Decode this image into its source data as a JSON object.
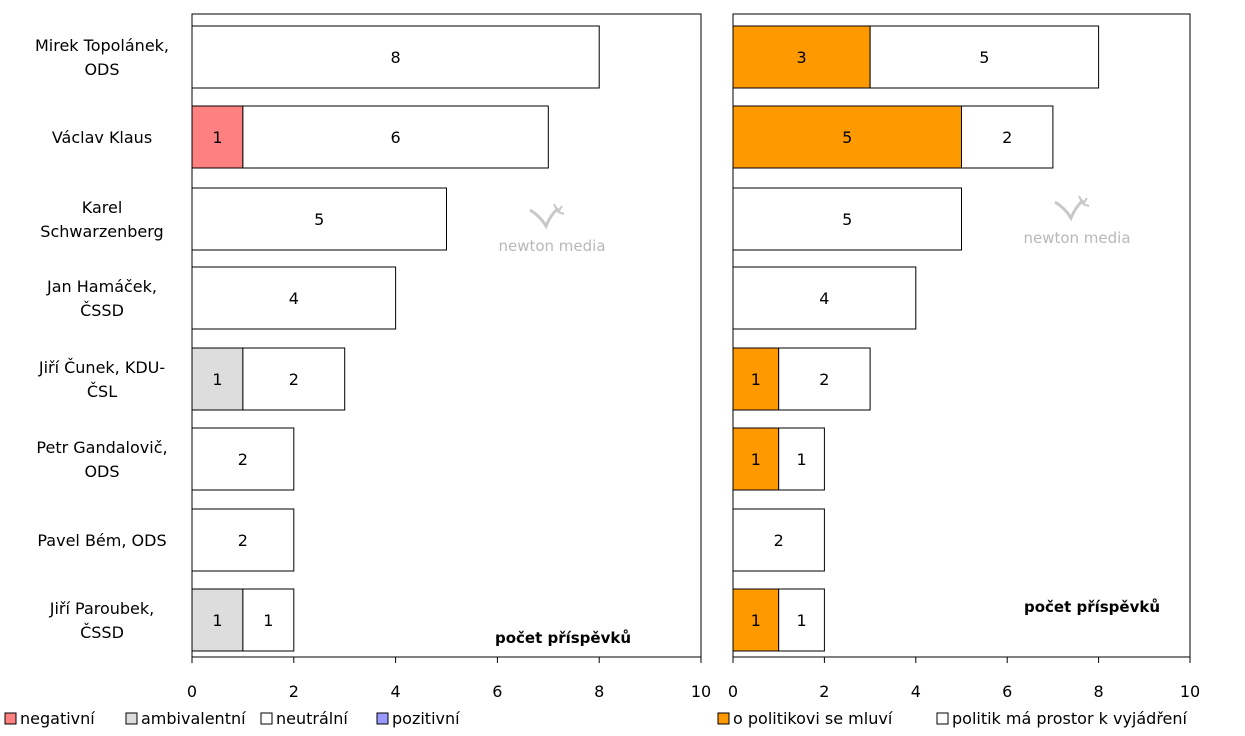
{
  "categories": [
    [
      "Mirek Topolánek,",
      "ODS"
    ],
    [
      "Václav Klaus"
    ],
    [
      "Karel",
      "Schwarzenberg"
    ],
    [
      "Jan Hamáček,",
      "ČSSD"
    ],
    [
      "Jiří Čunek, KDU-",
      "ČSL"
    ],
    [
      "Petr Gandalovič,",
      "ODS"
    ],
    [
      "Pavel Bém, ODS"
    ],
    [
      "Jiří Paroubek,",
      "ČSSD"
    ]
  ],
  "watermark": "newton media",
  "chart_data": [
    {
      "type": "bar",
      "orientation": "horizontal",
      "stacked": true,
      "categories": [
        "Mirek Topolánek, ODS",
        "Václav Klaus",
        "Karel Schwarzenberg",
        "Jan Hamáček, ČSSD",
        "Jiří Čunek, KDU-ČSL",
        "Petr Gandalovič, ODS",
        "Pavel Bém, ODS",
        "Jiří Paroubek, ČSSD"
      ],
      "series": [
        {
          "name": "negativní",
          "color": "#ff8080",
          "values": [
            0,
            1,
            0,
            0,
            0,
            0,
            0,
            0
          ]
        },
        {
          "name": "ambivalentní",
          "color": "#dddddd",
          "values": [
            0,
            0,
            0,
            0,
            1,
            0,
            0,
            1
          ]
        },
        {
          "name": "neutrální",
          "color": "#ffffff",
          "values": [
            8,
            6,
            5,
            4,
            2,
            2,
            2,
            1
          ]
        },
        {
          "name": "pozitivní",
          "color": "#9999ff",
          "values": [
            0,
            0,
            0,
            0,
            0,
            0,
            0,
            0
          ]
        }
      ],
      "xlim": [
        0,
        10
      ],
      "xticks": [
        0,
        2,
        4,
        6,
        8,
        10
      ],
      "annotation": "počet příspěvků",
      "legend_position": "bottom"
    },
    {
      "type": "bar",
      "orientation": "horizontal",
      "stacked": true,
      "categories": [
        "Mirek Topolánek, ODS",
        "Václav Klaus",
        "Karel Schwarzenberg",
        "Jan Hamáček, ČSSD",
        "Jiří Čunek, KDU-ČSL",
        "Petr Gandalovič, ODS",
        "Pavel Bém, ODS",
        "Jiří Paroubek, ČSSD"
      ],
      "series": [
        {
          "name": "o politikovi se mluví",
          "color": "#ff9900",
          "values": [
            3,
            5,
            0,
            0,
            1,
            1,
            0,
            1
          ]
        },
        {
          "name": "politik má prostor k vyjádření",
          "color": "#ffffff",
          "values": [
            5,
            2,
            5,
            4,
            2,
            1,
            2,
            1
          ]
        }
      ],
      "xlim": [
        0,
        10
      ],
      "xticks": [
        0,
        2,
        4,
        6,
        8,
        10
      ],
      "annotation": "počet příspěvků",
      "legend_position": "bottom"
    }
  ]
}
